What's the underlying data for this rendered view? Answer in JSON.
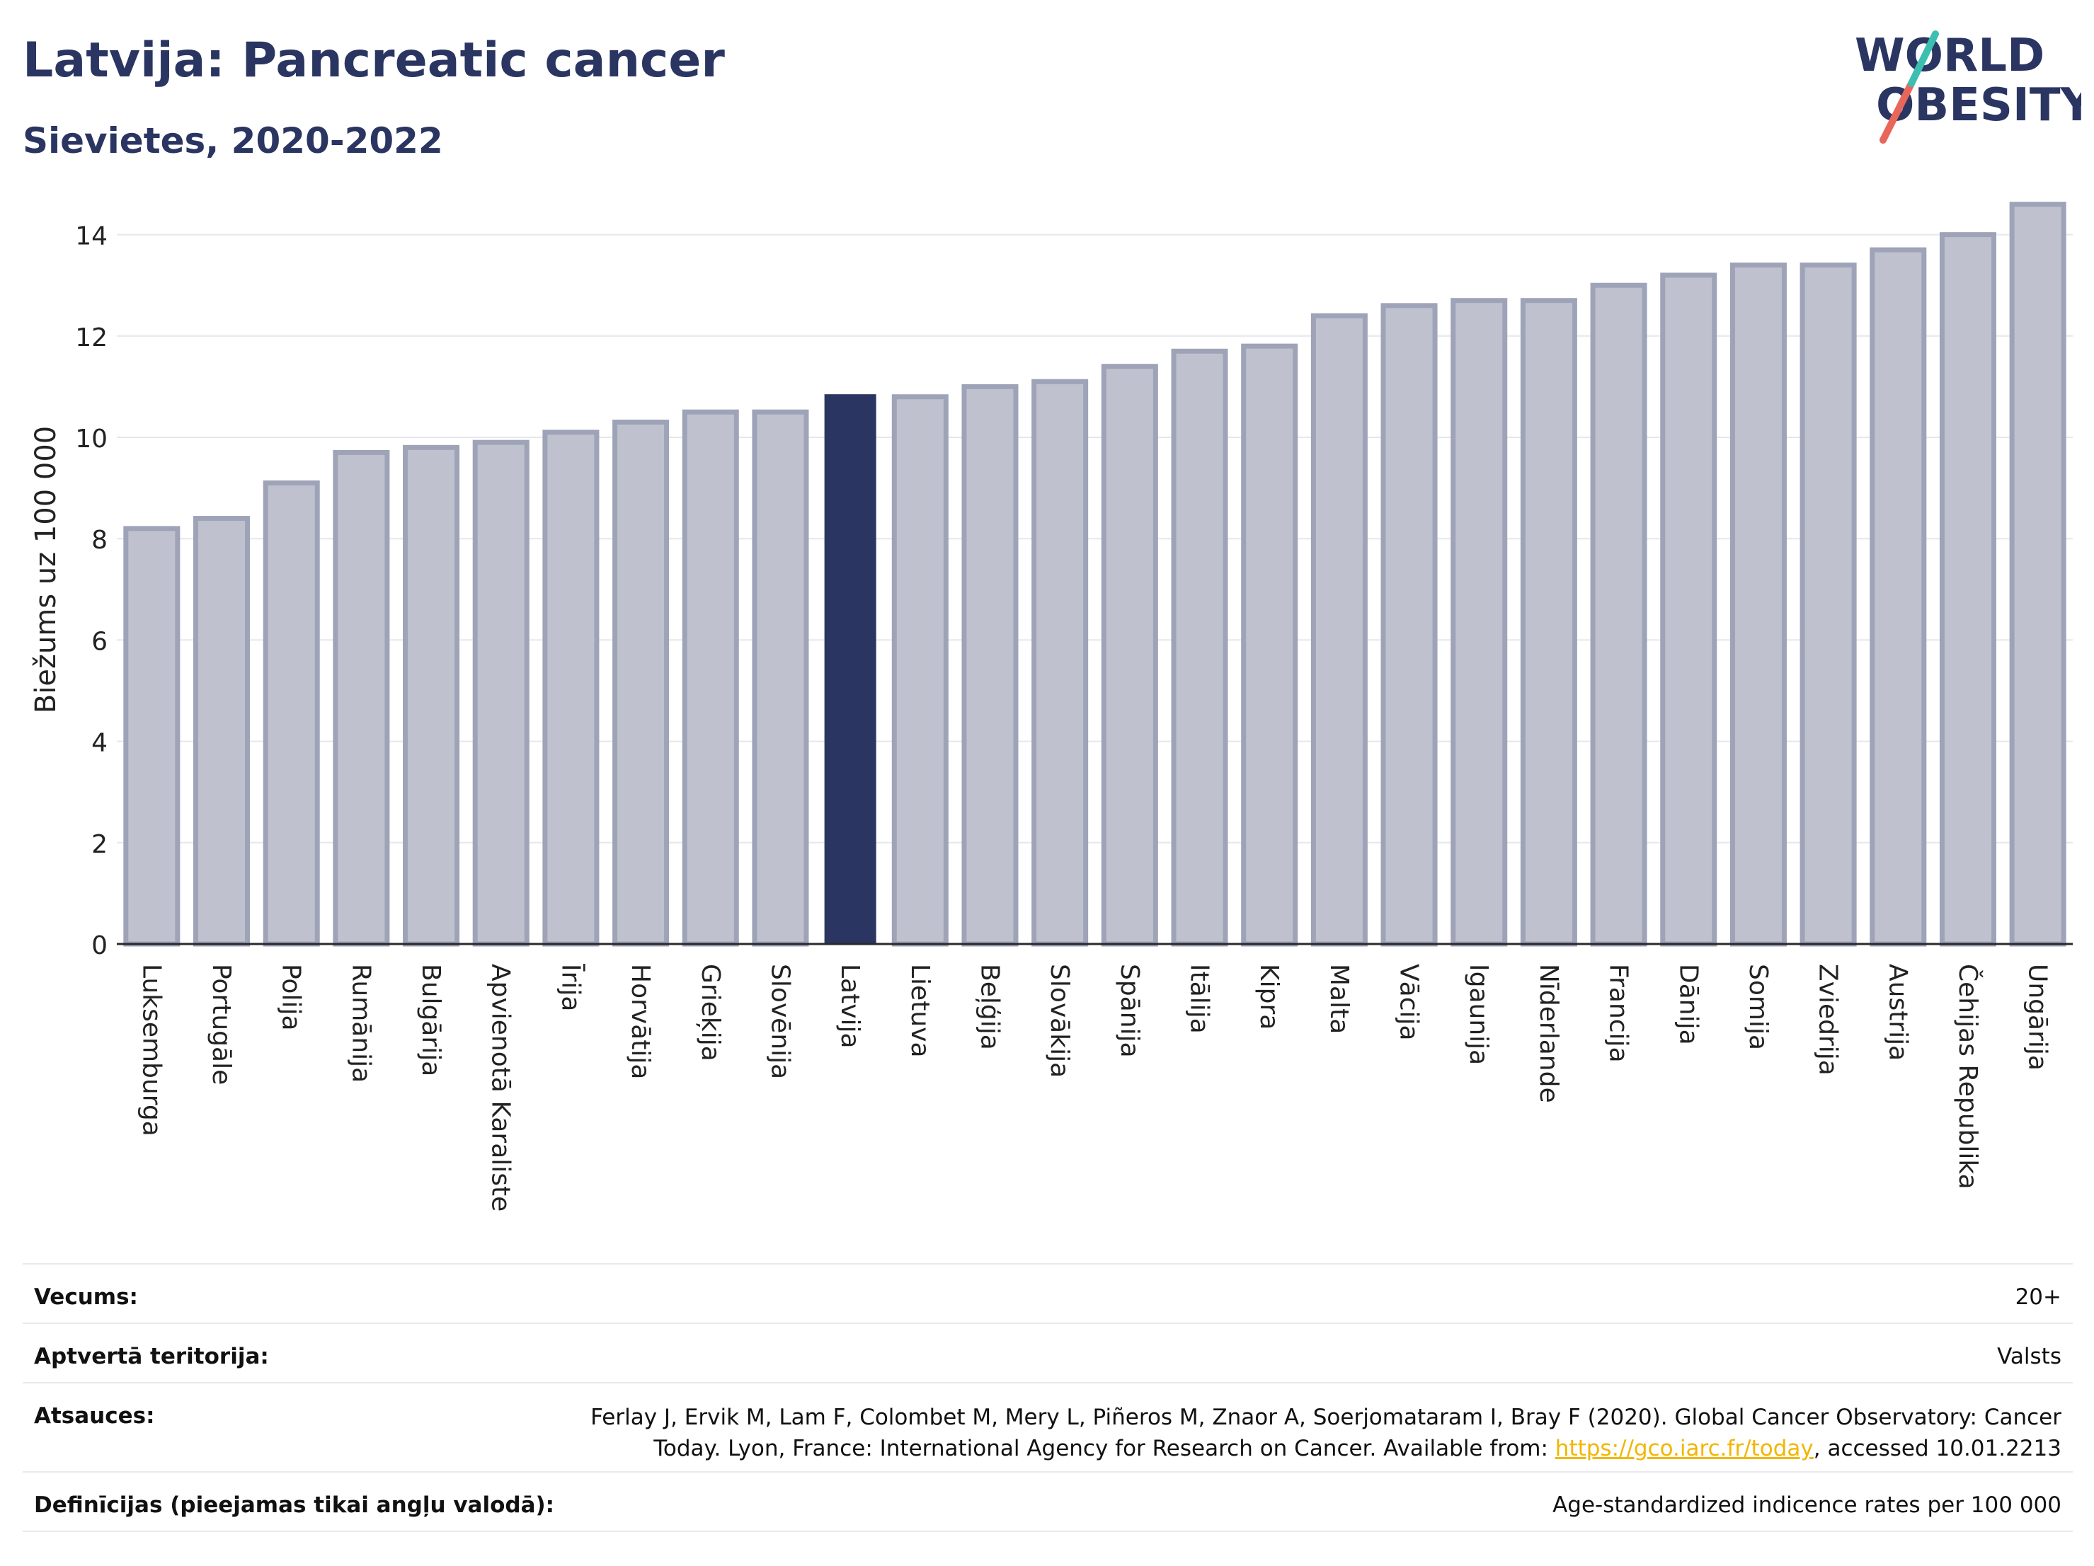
{
  "header": {
    "title": "Latvija: Pancreatic cancer",
    "subtitle": "Sievietes, 2020-2022"
  },
  "logo": {
    "line1": "WORLD",
    "line2": "OBESITY",
    "accent_teal": "#3cbfb1",
    "accent_red": "#e8675a"
  },
  "chart_data": {
    "type": "bar",
    "ylabel": "Biežums uz 100 000",
    "xlabel": "",
    "ylim": [
      0,
      15
    ],
    "yticks": [
      0,
      2,
      4,
      6,
      8,
      10,
      12,
      14
    ],
    "grid": true,
    "highlight": "Latvija",
    "colors": {
      "bar": "#bfc2ce",
      "bar_edge": "#9ea3b8",
      "highlight": "#2a3561"
    },
    "categories": [
      "Luksemburga",
      "Portugāle",
      "Polija",
      "Rumānija",
      "Bulgārija",
      "Apvienotā Karaliste",
      "Īrija",
      "Horvātija",
      "Grieķija",
      "Slovēnija",
      "Latvija",
      "Lietuva",
      "Beļģija",
      "Slovākija",
      "Spānija",
      "Itālija",
      "Kipra",
      "Malta",
      "Vācija",
      "Igaunija",
      "Nīderlande",
      "Francija",
      "Dānija",
      "Somija",
      "Zviedrija",
      "Austrija",
      "Čehijas Republika",
      "Ungārija"
    ],
    "values": [
      8.2,
      8.4,
      9.1,
      9.7,
      9.8,
      9.9,
      10.1,
      10.3,
      10.5,
      10.5,
      10.85,
      10.8,
      11.0,
      11.1,
      11.4,
      11.7,
      11.8,
      12.4,
      12.6,
      12.7,
      12.7,
      13.0,
      13.2,
      13.4,
      13.4,
      13.7,
      14.0,
      14.6
    ]
  },
  "meta": [
    {
      "label": "Vecums:",
      "value": "20+"
    },
    {
      "label": "Aptvertā teritorija:",
      "value": "Valsts"
    },
    {
      "label": "Atsauces:",
      "value_line1": "Ferlay J, Ervik M, Lam F, Colombet M, Mery L, Piñeros M, Znaor A, Soerjomataram I, Bray F (2020). Global Cancer Observatory: Cancer",
      "value_line2_pre": "Today. Lyon, France: International Agency for Research on Cancer. Available from: ",
      "link": "https://gco.iarc.fr/today",
      "value_line2_post": ", accessed 10.01.2213"
    },
    {
      "label": "Definīcijas (pieejamas tikai angļu valodā):",
      "value": "Age-standardized indicence rates per 100 000"
    }
  ]
}
